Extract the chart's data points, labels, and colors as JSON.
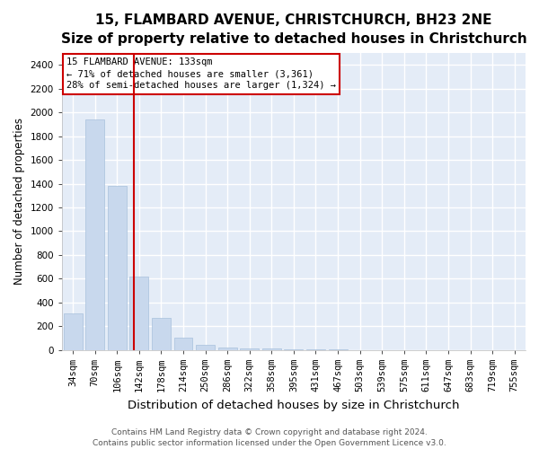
{
  "title_line1": "15, FLAMBARD AVENUE, CHRISTCHURCH, BH23 2NE",
  "title_line2": "Size of property relative to detached houses in Christchurch",
  "xlabel": "Distribution of detached houses by size in Christchurch",
  "ylabel": "Number of detached properties",
  "footer_line1": "Contains HM Land Registry data © Crown copyright and database right 2024.",
  "footer_line2": "Contains public sector information licensed under the Open Government Licence v3.0.",
  "bar_labels": [
    "34sqm",
    "70sqm",
    "106sqm",
    "142sqm",
    "178sqm",
    "214sqm",
    "250sqm",
    "286sqm",
    "322sqm",
    "358sqm",
    "395sqm",
    "431sqm",
    "467sqm",
    "503sqm",
    "539sqm",
    "575sqm",
    "611sqm",
    "647sqm",
    "683sqm",
    "719sqm",
    "755sqm"
  ],
  "bar_values": [
    310,
    1940,
    1380,
    620,
    270,
    100,
    40,
    20,
    15,
    10,
    8,
    3,
    2,
    1,
    1,
    0,
    0,
    0,
    0,
    0,
    0
  ],
  "bar_color": "#c8d8ed",
  "bar_edgecolor": "#a8c0dc",
  "background_color": "#e4ecf7",
  "grid_color": "#ffffff",
  "vline_color": "#cc0000",
  "annotation_line1": "15 FLAMBARD AVENUE: 133sqm",
  "annotation_line2": "← 71% of detached houses are smaller (3,361)",
  "annotation_line3": "28% of semi-detached houses are larger (1,324) →",
  "annotation_box_color": "#cc0000",
  "ylim": [
    0,
    2500
  ],
  "yticks": [
    0,
    200,
    400,
    600,
    800,
    1000,
    1200,
    1400,
    1600,
    1800,
    2000,
    2200,
    2400
  ],
  "title_fontsize": 11,
  "subtitle_fontsize": 10,
  "ylabel_fontsize": 8.5,
  "xlabel_fontsize": 9.5,
  "tick_fontsize": 7.5,
  "annotation_fontsize": 7.5,
  "footer_fontsize": 6.5
}
